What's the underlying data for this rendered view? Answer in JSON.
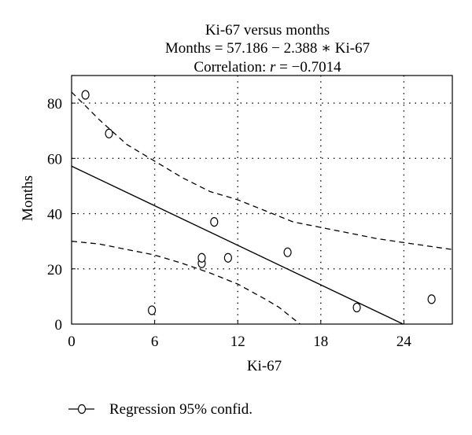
{
  "chart_data": {
    "type": "scatter",
    "title_lines": [
      "Ki-67 versus months",
      "Months = 57.186 − 2.388 ∗ Ki-67"
    ],
    "correlation": {
      "prefix": "Correlation: ",
      "symbol": "r",
      "value": " = −0.7014"
    },
    "xlabel": "Ki-67",
    "ylabel": "Months",
    "xlim": [
      0,
      27.5
    ],
    "ylim": [
      0,
      90
    ],
    "xticks": [
      0,
      6,
      12,
      18,
      24
    ],
    "yticks": [
      0,
      20,
      40,
      60,
      80
    ],
    "grid": "dotted",
    "points": [
      {
        "x": 1.0,
        "y": 83
      },
      {
        "x": 2.7,
        "y": 69
      },
      {
        "x": 5.8,
        "y": 5
      },
      {
        "x": 9.4,
        "y": 22
      },
      {
        "x": 9.4,
        "y": 24
      },
      {
        "x": 10.3,
        "y": 37
      },
      {
        "x": 11.3,
        "y": 24
      },
      {
        "x": 15.6,
        "y": 26
      },
      {
        "x": 20.6,
        "y": 6
      },
      {
        "x": 26.0,
        "y": 9
      }
    ],
    "regression": {
      "intercept": 57.186,
      "slope": -2.388
    },
    "confidence_upper": [
      [
        0,
        84
      ],
      [
        1,
        79
      ],
      [
        2,
        74
      ],
      [
        4,
        65
      ],
      [
        6,
        59
      ],
      [
        8,
        53
      ],
      [
        10,
        48
      ],
      [
        12,
        45
      ],
      [
        14,
        41
      ],
      [
        16,
        37
      ],
      [
        18,
        35
      ],
      [
        20,
        33
      ],
      [
        22,
        31
      ],
      [
        24,
        29.5
      ],
      [
        27.5,
        27
      ]
    ],
    "confidence_lower": [
      [
        0,
        30
      ],
      [
        2,
        29
      ],
      [
        4,
        27
      ],
      [
        6,
        25
      ],
      [
        8,
        22
      ],
      [
        10,
        18.5
      ],
      [
        12,
        14.5
      ],
      [
        14,
        9
      ],
      [
        15,
        6
      ],
      [
        16,
        2
      ],
      [
        16.5,
        0
      ]
    ],
    "legend": {
      "entries": [
        "Regression 95% confid."
      ],
      "position": "bottom-left"
    }
  }
}
